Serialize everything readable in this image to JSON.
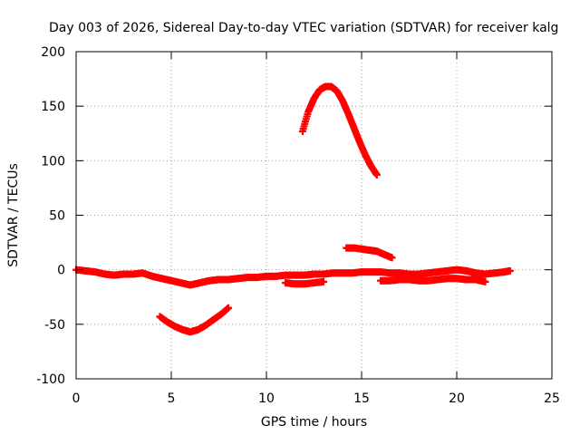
{
  "chart_data": {
    "type": "scatter",
    "title": "Day 003 of 2026, Sidereal Day-to-day VTEC variation (SDTVAR) for receiver kalg",
    "xlabel": "GPS time / hours",
    "ylabel": "SDTVAR / TECUs",
    "xlim": [
      0,
      25
    ],
    "ylim": [
      -100,
      200
    ],
    "grid": true,
    "x_ticks": [
      0,
      5,
      10,
      15,
      20,
      25
    ],
    "y_ticks": [
      -100,
      -50,
      0,
      50,
      100,
      150,
      200
    ],
    "x_tick_labels": [
      "0",
      "5",
      "10",
      "15",
      "20",
      "25"
    ],
    "y_tick_labels": [
      "-100",
      "-50",
      "0",
      "50",
      "100",
      "150",
      "200"
    ],
    "marker": "plus",
    "color": "#ff0000",
    "series": [
      {
        "name": "main-band",
        "x": [
          0.0,
          0.5,
          1.0,
          1.5,
          2.0,
          2.5,
          3.0,
          3.5,
          4.0,
          4.5,
          5.0,
          5.5,
          6.0,
          6.5,
          7.0,
          7.5,
          8.0,
          8.5,
          9.0,
          9.5,
          10.0,
          10.5,
          11.0,
          11.5,
          12.0,
          12.5,
          13.0,
          13.5,
          14.0,
          14.5,
          15.0,
          15.5,
          16.0,
          16.5,
          17.0,
          17.5,
          18.0,
          18.5,
          19.0,
          19.5,
          20.0,
          20.5,
          21.0,
          21.5,
          22.0,
          22.5,
          22.8
        ],
        "y": [
          0,
          -1,
          -2,
          -4,
          -5,
          -4,
          -4,
          -3,
          -6,
          -8,
          -10,
          -12,
          -14,
          -12,
          -10,
          -9,
          -9,
          -8,
          -7,
          -7,
          -6,
          -6,
          -5,
          -5,
          -5,
          -4,
          -4,
          -3,
          -3,
          -3,
          -2,
          -2,
          -2,
          -3,
          -3,
          -4,
          -4,
          -3,
          -2,
          -1,
          0,
          -1,
          -3,
          -4,
          -3,
          -2,
          -1
        ]
      },
      {
        "name": "lower-band",
        "x": [
          11.0,
          11.5,
          12.0,
          12.5,
          13.0,
          16.0,
          16.5,
          17.0,
          17.5,
          18.0,
          18.5,
          19.0,
          19.5,
          20.0,
          20.5,
          21.0,
          21.5
        ],
        "y": [
          -12,
          -13,
          -13,
          -12,
          -11,
          -10,
          -10,
          -9,
          -9,
          -10,
          -10,
          -9,
          -8,
          -8,
          -9,
          -9,
          -11
        ]
      },
      {
        "name": "arc-high",
        "x": [
          11.9,
          12.2,
          12.5,
          12.8,
          13.1,
          13.4,
          13.7,
          14.0,
          14.3,
          14.6,
          14.9,
          15.2,
          15.5,
          15.8
        ],
        "y": [
          127,
          145,
          157,
          165,
          168,
          168,
          164,
          155,
          143,
          130,
          117,
          105,
          95,
          87
        ]
      },
      {
        "name": "arc-mid",
        "x": [
          14.2,
          14.6,
          15.0,
          15.4,
          15.8,
          16.2,
          16.6
        ],
        "y": [
          20,
          20,
          19,
          18,
          17,
          14,
          11
        ]
      },
      {
        "name": "arc-low",
        "x": [
          4.4,
          4.8,
          5.2,
          5.6,
          6.0,
          6.4,
          6.8,
          7.2,
          7.6,
          8.0
        ],
        "y": [
          -43,
          -48,
          -52,
          -55,
          -57,
          -55,
          -51,
          -46,
          -41,
          -35
        ]
      }
    ]
  }
}
